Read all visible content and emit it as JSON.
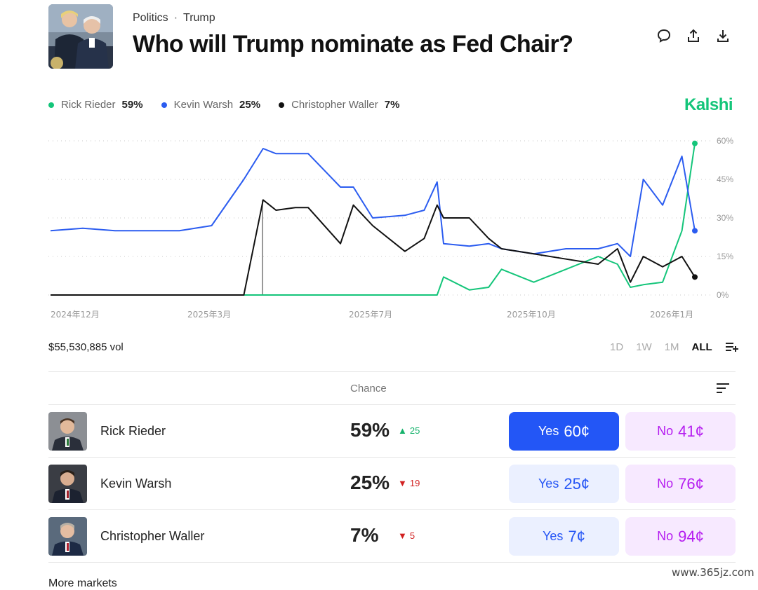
{
  "header": {
    "breadcrumb": [
      "Politics",
      "Trump"
    ],
    "breadcrumb_separator": "·",
    "title": "Who will Trump nominate as Fed Chair?",
    "icons": [
      "comment-icon",
      "share-icon",
      "download-icon"
    ]
  },
  "brand": {
    "name": "Kalshi",
    "color": "#14c57a"
  },
  "legend": [
    {
      "name": "Rick Rieder",
      "pct": "59%",
      "color": "#14c57a"
    },
    {
      "name": "Kevin Warsh",
      "pct": "25%",
      "color": "#2b5cf0"
    },
    {
      "name": "Christopher Waller",
      "pct": "7%",
      "color": "#111111"
    }
  ],
  "chart_data": {
    "type": "line",
    "x_tick_labels": [
      "2024年12月",
      "2025年3月",
      "2025年7月",
      "2025年10月",
      "2026年1月"
    ],
    "y_tick_labels": [
      "60%",
      "45%",
      "30%",
      "15%",
      "0%"
    ],
    "ylim": [
      0,
      60
    ],
    "x": [
      0,
      5,
      10,
      15,
      20,
      25,
      30,
      33,
      35,
      38,
      40,
      45,
      47,
      50,
      55,
      58,
      60,
      61,
      65,
      68,
      70,
      75,
      80,
      85,
      88,
      90,
      92,
      95,
      98,
      100
    ],
    "series": [
      {
        "name": "Rick Rieder",
        "color": "#14c57a",
        "values": [
          0,
          0,
          0,
          0,
          0,
          0,
          0,
          0,
          0,
          0,
          0,
          0,
          0,
          0,
          0,
          0,
          0,
          7,
          2,
          3,
          10,
          5,
          10,
          15,
          12,
          3,
          4,
          5,
          25,
          59
        ]
      },
      {
        "name": "Kevin Warsh",
        "color": "#2b5cf0",
        "values": [
          25,
          26,
          25,
          25,
          25,
          27,
          45,
          57,
          55,
          55,
          55,
          42,
          42,
          30,
          31,
          33,
          44,
          20,
          19,
          20,
          18,
          16,
          18,
          18,
          20,
          15,
          45,
          35,
          54,
          25
        ]
      },
      {
        "name": "Christopher Waller",
        "color": "#111111",
        "values": [
          0,
          0,
          0,
          0,
          0,
          0,
          0,
          37,
          33,
          34,
          34,
          20,
          35,
          27,
          17,
          22,
          35,
          30,
          30,
          22,
          18,
          16,
          14,
          12,
          18,
          5,
          15,
          11,
          15,
          7
        ]
      }
    ]
  },
  "volume": "$55,530,885 vol",
  "ranges": [
    "1D",
    "1W",
    "1M",
    "ALL"
  ],
  "active_range": "ALL",
  "table": {
    "chance_header": "Chance",
    "rows": [
      {
        "name": "Rick Rieder",
        "chance": "59%",
        "change": "25",
        "direction": "up",
        "yes_label": "Yes",
        "yes_price": "60¢",
        "no_label": "No",
        "no_price": "41¢"
      },
      {
        "name": "Kevin Warsh",
        "chance": "25%",
        "change": "19",
        "direction": "down",
        "yes_label": "Yes",
        "yes_price": "25¢",
        "no_label": "No",
        "no_price": "76¢"
      },
      {
        "name": "Christopher Waller",
        "chance": "7%",
        "change": "5",
        "direction": "down",
        "yes_label": "Yes",
        "yes_price": "7¢",
        "no_label": "No",
        "no_price": "94¢"
      }
    ]
  },
  "more_label": "More markets",
  "watermark": "www.365jz.com"
}
